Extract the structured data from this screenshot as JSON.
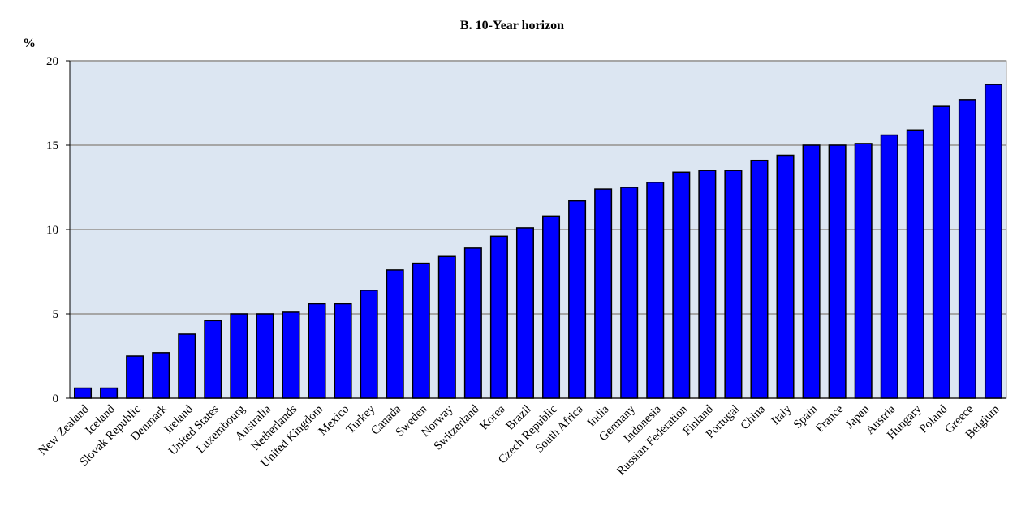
{
  "chart_data": {
    "type": "bar",
    "title": "B. 10-Year horizon",
    "y_label": "%",
    "categories": [
      "New Zealand",
      "Iceland",
      "Slovak Republic",
      "Denmark",
      "Ireland",
      "United States",
      "Luxembourg",
      "Australia",
      "Netherlands",
      "United Kingdom",
      "Mexico",
      "Turkey",
      "Canada",
      "Sweden",
      "Norway",
      "Switzerland",
      "Korea",
      "Brazil",
      "Czech Republic",
      "South Africa",
      "India",
      "Germany",
      "Indonesia",
      "Russian Federation",
      "Finland",
      "Portugal",
      "China",
      "Italy",
      "Spain",
      "France",
      "Japan",
      "Austria",
      "Hungary",
      "Poland",
      "Greece",
      "Belgium"
    ],
    "values": [
      0.6,
      0.6,
      2.5,
      2.7,
      3.8,
      4.6,
      5.0,
      5.0,
      5.1,
      5.6,
      5.6,
      6.4,
      7.6,
      8.0,
      8.4,
      8.9,
      9.6,
      10.1,
      10.8,
      11.7,
      12.4,
      12.5,
      12.8,
      13.4,
      13.5,
      13.5,
      14.1,
      14.4,
      15.0,
      15.0,
      15.1,
      15.6,
      15.9,
      17.3,
      17.7,
      18.6
    ],
    "color": "#0000ff",
    "ylim": [
      0,
      20
    ],
    "yticks": [
      0,
      5,
      10,
      15,
      20
    ],
    "grid": true
  }
}
